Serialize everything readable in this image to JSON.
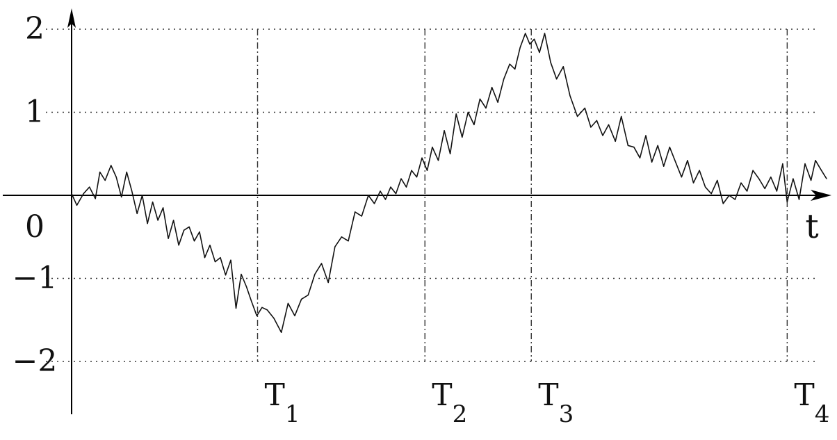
{
  "chart_data": {
    "type": "line",
    "title": "",
    "xlabel": "t",
    "ylabel": "",
    "x_range": [
      0,
      10
    ],
    "ylim": [
      -2,
      2
    ],
    "y_ticks": [
      {
        "value": 2,
        "label": "2"
      },
      {
        "value": 1,
        "label": "1"
      },
      {
        "value": 0,
        "label": "0"
      },
      {
        "value": -1,
        "label": "−1"
      },
      {
        "value": -2,
        "label": "−2"
      }
    ],
    "grid": "dotted horizontal lines at y = 2, 1, -1, -2",
    "markers": [
      {
        "name": "T",
        "sub": "1",
        "t": 2.5
      },
      {
        "name": "T",
        "sub": "2",
        "t": 4.75
      },
      {
        "name": "T",
        "sub": "3",
        "t": 6.18
      },
      {
        "name": "T",
        "sub": "4",
        "t": 9.62
      }
    ],
    "series": [
      {
        "x": [
          0.0,
          0.07,
          0.16,
          0.24,
          0.32,
          0.38,
          0.45,
          0.53,
          0.6,
          0.67,
          0.74,
          0.81,
          0.88,
          0.95,
          1.02,
          1.09,
          1.16,
          1.23,
          1.3,
          1.37,
          1.44,
          1.51,
          1.58,
          1.65,
          1.72,
          1.79,
          1.86,
          1.93,
          2.0,
          2.07,
          2.14,
          2.21,
          2.28,
          2.35,
          2.42,
          2.49,
          2.56,
          2.63,
          2.72,
          2.82,
          2.91,
          3.0,
          3.09,
          3.18,
          3.27,
          3.36,
          3.45,
          3.54,
          3.63,
          3.72,
          3.81,
          3.9,
          3.99,
          4.07,
          4.15,
          4.22,
          4.29,
          4.36,
          4.43,
          4.5,
          4.57,
          4.64,
          4.71,
          4.78,
          4.85,
          4.93,
          5.01,
          5.09,
          5.17,
          5.25,
          5.33,
          5.41,
          5.49,
          5.57,
          5.65,
          5.73,
          5.81,
          5.89,
          5.96,
          6.03,
          6.1,
          6.16,
          6.22,
          6.29,
          6.36,
          6.44,
          6.52,
          6.61,
          6.7,
          6.8,
          6.9,
          6.98,
          7.06,
          7.14,
          7.22,
          7.31,
          7.39,
          7.48,
          7.56,
          7.64,
          7.72,
          7.8,
          7.88,
          7.96,
          8.04,
          8.12,
          8.2,
          8.28,
          8.36,
          8.44,
          8.52,
          8.6,
          8.68,
          8.76,
          8.84,
          8.92,
          9.0,
          9.08,
          9.16,
          9.24,
          9.32,
          9.4,
          9.48,
          9.56,
          9.62,
          9.7,
          9.78,
          9.86,
          9.94,
          10.0,
          10.08,
          10.15
        ],
        "values": [
          0.02,
          -0.12,
          0.02,
          0.1,
          -0.04,
          0.28,
          0.18,
          0.36,
          0.22,
          -0.02,
          0.28,
          0.05,
          -0.22,
          0.0,
          -0.34,
          -0.08,
          -0.3,
          -0.15,
          -0.52,
          -0.3,
          -0.6,
          -0.42,
          -0.38,
          -0.55,
          -0.44,
          -0.75,
          -0.6,
          -0.8,
          -0.75,
          -0.96,
          -0.78,
          -1.36,
          -0.95,
          -1.1,
          -1.28,
          -1.45,
          -1.35,
          -1.38,
          -1.48,
          -1.65,
          -1.3,
          -1.45,
          -1.25,
          -1.2,
          -0.95,
          -0.82,
          -1.05,
          -0.62,
          -0.5,
          -0.55,
          -0.2,
          -0.25,
          0.0,
          -0.1,
          0.05,
          -0.05,
          0.1,
          0.02,
          0.2,
          0.1,
          0.3,
          0.22,
          0.45,
          0.3,
          0.58,
          0.42,
          0.78,
          0.5,
          0.98,
          0.7,
          1.0,
          0.85,
          1.16,
          1.05,
          1.3,
          1.12,
          1.4,
          1.58,
          1.52,
          1.78,
          1.95,
          1.82,
          1.88,
          1.72,
          1.95,
          1.6,
          1.4,
          1.55,
          1.2,
          0.95,
          1.05,
          0.82,
          0.9,
          0.72,
          0.85,
          0.65,
          0.95,
          0.6,
          0.58,
          0.45,
          0.72,
          0.4,
          0.6,
          0.35,
          0.58,
          0.4,
          0.22,
          0.42,
          0.15,
          0.3,
          0.1,
          0.02,
          0.18,
          -0.1,
          0.0,
          -0.05,
          0.15,
          0.05,
          0.3,
          0.2,
          0.08,
          0.22,
          0.05,
          0.38,
          -0.08,
          0.2,
          -0.05,
          0.38,
          0.18,
          0.42,
          0.3,
          0.2
        ]
      }
    ]
  }
}
